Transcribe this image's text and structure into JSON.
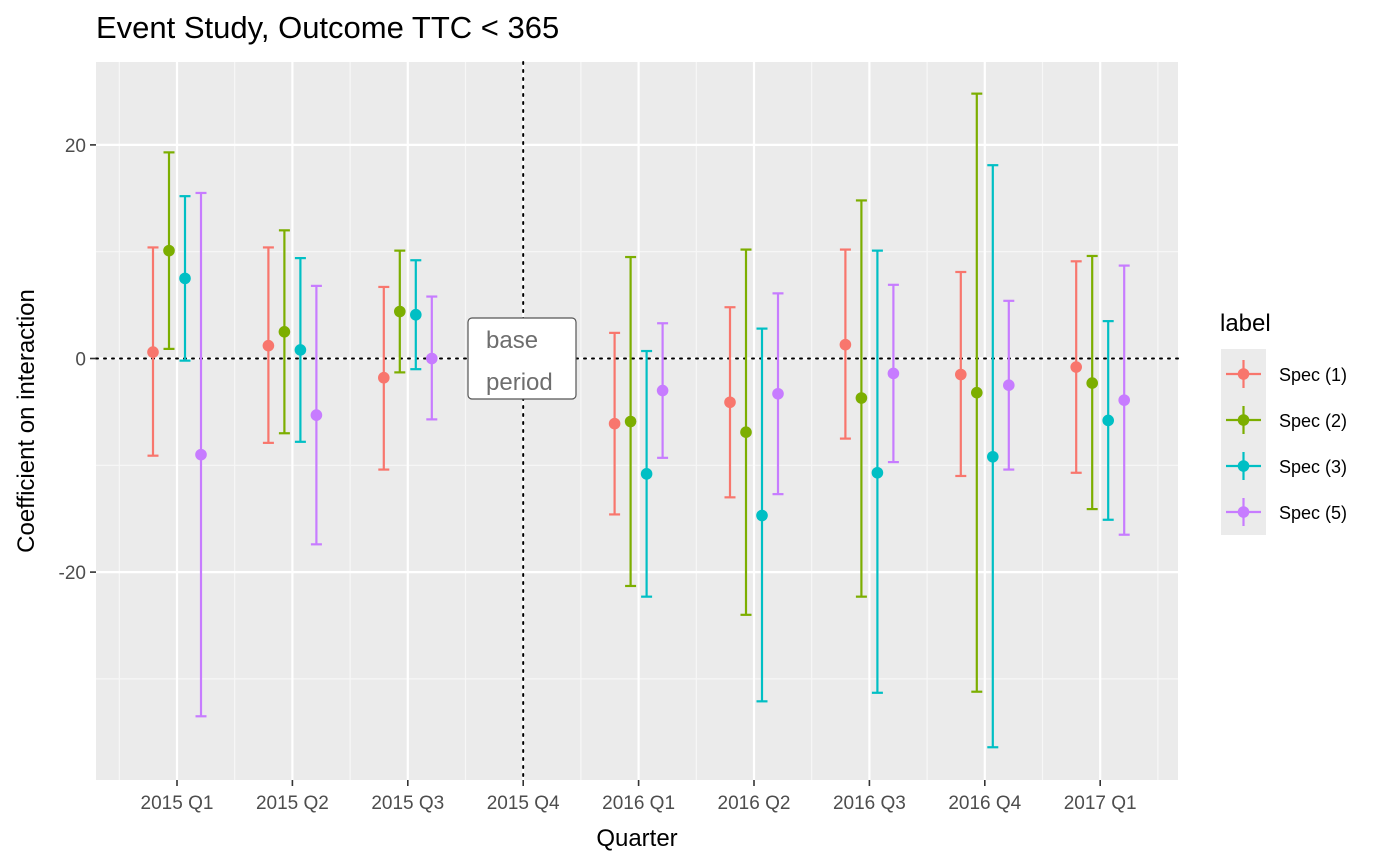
{
  "chart_data": {
    "type": "errorbar",
    "title": "Event Study, Outcome TTC < 365",
    "xlabel": "Quarter",
    "ylabel": "Coefficient on interaction",
    "categories": [
      "2015 Q1",
      "2015 Q2",
      "2015 Q3",
      "2015 Q4",
      "2016 Q1",
      "2016 Q2",
      "2016 Q3",
      "2016 Q4",
      "2017 Q1"
    ],
    "ylim": [
      -39,
      27
    ],
    "yticks": [
      -20,
      0,
      20
    ],
    "ytick_labels": [
      "-20",
      "0",
      "20"
    ],
    "grid": true,
    "legend": {
      "title": "label",
      "placement": "right"
    },
    "reference_lines": [
      {
        "axis": "y",
        "value": 0,
        "style": "dotted"
      },
      {
        "axis": "x",
        "value": "2015 Q4",
        "style": "dotted"
      }
    ],
    "annotation": {
      "lines": [
        "base",
        "period"
      ],
      "x": "2015 Q4",
      "y": -1.3
    },
    "series": [
      {
        "name": "Spec (1)",
        "color": "#F8766D",
        "points": [
          {
            "x": "2015 Q1",
            "y": 0.6,
            "lo": -9.1,
            "hi": 10.4
          },
          {
            "x": "2015 Q2",
            "y": 1.2,
            "lo": -7.9,
            "hi": 10.4
          },
          {
            "x": "2015 Q3",
            "y": -1.8,
            "lo": -10.4,
            "hi": 6.7
          },
          {
            "x": "2016 Q1",
            "y": -6.1,
            "lo": -14.6,
            "hi": 2.4
          },
          {
            "x": "2016 Q2",
            "y": -4.1,
            "lo": -13.0,
            "hi": 4.8
          },
          {
            "x": "2016 Q3",
            "y": 1.3,
            "lo": -7.5,
            "hi": 10.2
          },
          {
            "x": "2016 Q4",
            "y": -1.5,
            "lo": -11.0,
            "hi": 8.1
          },
          {
            "x": "2017 Q1",
            "y": -0.8,
            "lo": -10.7,
            "hi": 9.1
          }
        ]
      },
      {
        "name": "Spec (2)",
        "color": "#7CAE00",
        "points": [
          {
            "x": "2015 Q1",
            "y": 10.1,
            "lo": 0.9,
            "hi": 19.3
          },
          {
            "x": "2015 Q2",
            "y": 2.5,
            "lo": -7.0,
            "hi": 12.0
          },
          {
            "x": "2015 Q3",
            "y": 4.4,
            "lo": -1.3,
            "hi": 10.1
          },
          {
            "x": "2016 Q1",
            "y": -5.9,
            "lo": -21.3,
            "hi": 9.5
          },
          {
            "x": "2016 Q2",
            "y": -6.9,
            "lo": -24.0,
            "hi": 10.2
          },
          {
            "x": "2016 Q3",
            "y": -3.7,
            "lo": -22.3,
            "hi": 14.8
          },
          {
            "x": "2016 Q4",
            "y": -3.2,
            "lo": -31.2,
            "hi": 24.8
          },
          {
            "x": "2017 Q1",
            "y": -2.3,
            "lo": -14.1,
            "hi": 9.6
          }
        ]
      },
      {
        "name": "Spec (3)",
        "color": "#00BFC4",
        "points": [
          {
            "x": "2015 Q1",
            "y": 7.5,
            "lo": -0.2,
            "hi": 15.2
          },
          {
            "x": "2015 Q2",
            "y": 0.8,
            "lo": -7.8,
            "hi": 9.4
          },
          {
            "x": "2015 Q3",
            "y": 4.1,
            "lo": -1.0,
            "hi": 9.2
          },
          {
            "x": "2016 Q1",
            "y": -10.8,
            "lo": -22.3,
            "hi": 0.7
          },
          {
            "x": "2016 Q2",
            "y": -14.7,
            "lo": -32.1,
            "hi": 2.8
          },
          {
            "x": "2016 Q3",
            "y": -10.7,
            "lo": -31.3,
            "hi": 10.1
          },
          {
            "x": "2016 Q4",
            "y": -9.2,
            "lo": -36.4,
            "hi": 18.1
          },
          {
            "x": "2017 Q1",
            "y": -5.8,
            "lo": -15.1,
            "hi": 3.5
          }
        ]
      },
      {
        "name": "Spec (5)",
        "color": "#C77CFF",
        "points": [
          {
            "x": "2015 Q1",
            "y": -9.0,
            "lo": -33.5,
            "hi": 15.5
          },
          {
            "x": "2015 Q2",
            "y": -5.3,
            "lo": -17.4,
            "hi": 6.8
          },
          {
            "x": "2015 Q3",
            "y": 0.0,
            "lo": -5.7,
            "hi": 5.8
          },
          {
            "x": "2016 Q1",
            "y": -3.0,
            "lo": -9.3,
            "hi": 3.3
          },
          {
            "x": "2016 Q2",
            "y": -3.3,
            "lo": -12.7,
            "hi": 6.1
          },
          {
            "x": "2016 Q3",
            "y": -1.4,
            "lo": -9.7,
            "hi": 6.9
          },
          {
            "x": "2016 Q4",
            "y": -2.5,
            "lo": -10.4,
            "hi": 5.4
          },
          {
            "x": "2017 Q1",
            "y": -3.9,
            "lo": -16.5,
            "hi": 8.7
          }
        ]
      }
    ]
  }
}
